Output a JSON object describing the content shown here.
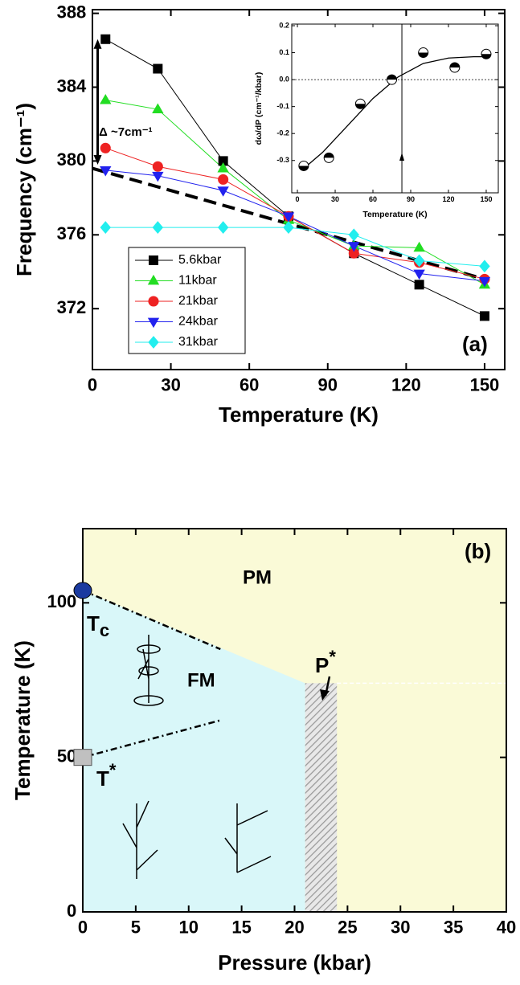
{
  "chart_data": [
    {
      "type": "line",
      "x": [
        5,
        25,
        50,
        75,
        100,
        125,
        150
      ],
      "xlim": [
        0,
        157.7
      ],
      "xticks": [
        0,
        30,
        60,
        90,
        120,
        150
      ],
      "ylim": [
        368.7,
        388.2
      ],
      "yticks": [
        372,
        376,
        380,
        384,
        388
      ],
      "x_label": "Temperature (K)",
      "y_label": "Frequency (cm⁻¹)",
      "panel_label": "(a)",
      "series": [
        {
          "name": "5.6kbar",
          "color": "#000000",
          "marker": "square",
          "values": [
            386.6,
            385.0,
            380.0,
            377.0,
            375.0,
            373.3,
            371.6
          ]
        },
        {
          "name": "11kbar",
          "color": "#22dd22",
          "marker": "triangle-up",
          "values": [
            383.3,
            382.8,
            379.6,
            376.8,
            375.4,
            375.3,
            373.3
          ]
        },
        {
          "name": "21kbar",
          "color": "#ee2222",
          "marker": "circle",
          "values": [
            380.7,
            379.7,
            379.0,
            377.0,
            375.0,
            374.5,
            373.6
          ]
        },
        {
          "name": "24kbar",
          "color": "#2222ee",
          "marker": "triangle-down",
          "values": [
            379.5,
            379.2,
            378.4,
            377.0,
            375.4,
            373.9,
            373.5
          ]
        },
        {
          "name": "31kbar",
          "color": "#22eeee",
          "marker": "diamond",
          "values": [
            376.4,
            376.4,
            376.4,
            376.4,
            376.0,
            374.6,
            374.3
          ]
        }
      ],
      "trend_line": {
        "x": [
          0,
          150
        ],
        "values": [
          379.6,
          373.6
        ]
      },
      "delta_arrow": {
        "x": 2,
        "values": [
          379.8,
          386.6
        ]
      },
      "annotation": "Δ ~7cm⁻¹"
    },
    {
      "type": "scatter",
      "x": [
        5,
        25,
        50,
        75,
        100,
        125,
        150
      ],
      "values": [
        -0.32,
        -0.29,
        -0.09,
        0.0,
        0.1,
        0.045,
        0.095
      ],
      "xlim": [
        -4.5,
        159.6
      ],
      "xticks": [
        0,
        30,
        60,
        90,
        120,
        150
      ],
      "ylim": [
        -0.42,
        0.206
      ],
      "yticks": [
        -0.3,
        -0.2,
        -0.1,
        {
          "value": 0,
          "label": "0.0"
        },
        0.1,
        0.2
      ],
      "x_label": "Temperature  (K)",
      "y_label": "dω/dP (cm⁻¹/kbar)",
      "fit": {
        "x": [
          5,
          20,
          40,
          60,
          80,
          100,
          120,
          140,
          150
        ],
        "values": [
          -0.33,
          -0.27,
          -0.17,
          -0.07,
          0.01,
          0.06,
          0.08,
          0.085,
          0.085
        ]
      },
      "reference_y": 0,
      "marker_x": 83
    },
    {
      "type": "phase",
      "xlim": [
        0,
        40
      ],
      "xticks": [
        0,
        5,
        10,
        15,
        20,
        25,
        30,
        35,
        40
      ],
      "ylim": [
        0,
        124
      ],
      "yticks": [
        0,
        50,
        100
      ],
      "x_label": "Pressure (kbar)",
      "y_label": "Temperature (K)",
      "panel_label": "(b)",
      "background": "#fafad7",
      "fm_region": {
        "color": "#d9f7f9",
        "x": [
          0,
          21,
          21,
          0
        ],
        "values": [
          104,
          74,
          0,
          0
        ]
      },
      "p_star_band": {
        "x": [
          21,
          24
        ],
        "value": 74
      },
      "boundary": {
        "x": [
          24,
          40
        ],
        "values": [
          74,
          74
        ]
      },
      "tc_point": {
        "x": 0,
        "value": 104,
        "color": "#1a3aa0"
      },
      "tstar_point": {
        "x": 0,
        "value": 50,
        "color": "#c0c0c0"
      },
      "tc_line": {
        "x": [
          0,
          13
        ],
        "values": [
          104,
          85
        ]
      },
      "tstar_line": {
        "x": [
          0,
          13
        ],
        "values": [
          50,
          62
        ]
      },
      "pm_label": "PM",
      "fm_label": "FM",
      "tc_label": {
        "main": "T",
        "sub": "c"
      },
      "tstar_label": {
        "main": "T",
        "sup": "*"
      },
      "pstar_label": {
        "main": "P",
        "sup": "*"
      }
    }
  ]
}
